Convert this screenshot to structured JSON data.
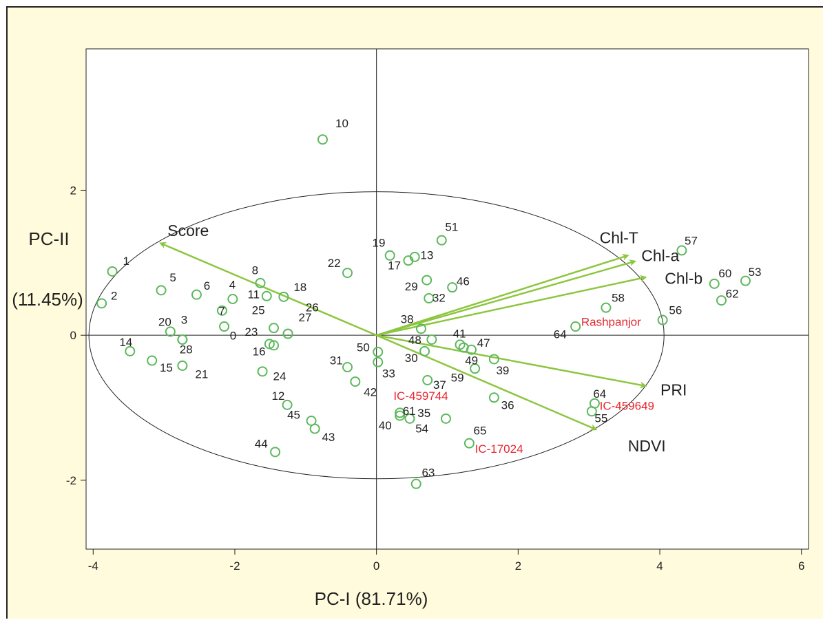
{
  "chart_data": {
    "type": "scatter",
    "subtype": "pca-biplot",
    "xlabel": "PC-I (81.71%)",
    "ylabel": "PC-II",
    "ylabel_sub": "(11.45%)",
    "xlim": [
      -4.1,
      6.1
    ],
    "ylim": [
      -2.95,
      3.95
    ],
    "xticks": [
      -4,
      -2,
      0,
      2,
      4,
      6
    ],
    "yticks": [
      -2,
      0,
      2
    ],
    "ellipse": {
      "center": [
        0,
        0
      ],
      "rx": 4.06,
      "ry": 1.98
    },
    "colors": {
      "points": "#5cb85c",
      "vectors": "#8cc63f",
      "highlight": "#e8262e",
      "background": "#fffbdc"
    },
    "points": [
      {
        "label": "1",
        "x": -3.73,
        "y": 0.88
      },
      {
        "label": "2",
        "x": -3.88,
        "y": 0.44
      },
      {
        "label": "3",
        "x": -2.74,
        "y": -0.06
      },
      {
        "label": "4",
        "x": -2.03,
        "y": 0.5
      },
      {
        "label": "5",
        "x": -3.04,
        "y": 0.62
      },
      {
        "label": "6",
        "x": -2.54,
        "y": 0.56
      },
      {
        "label": "7",
        "x": -2.18,
        "y": 0.34
      },
      {
        "label": "0",
        "x": -2.15,
        "y": 0.12
      },
      {
        "label": "8",
        "x": -1.64,
        "y": 0.72
      },
      {
        "label": "10",
        "x": -0.76,
        "y": 2.7
      },
      {
        "label": "11",
        "x": -1.55,
        "y": 0.54
      },
      {
        "label": "12",
        "x": -1.26,
        "y": -0.96
      },
      {
        "label": "13",
        "x": 0.54,
        "y": 1.08
      },
      {
        "label": "14",
        "x": -3.48,
        "y": -0.22
      },
      {
        "label": "15",
        "x": -3.17,
        "y": -0.35
      },
      {
        "label": "16",
        "x": -1.51,
        "y": -0.12
      },
      {
        "label": "17",
        "x": 0.45,
        "y": 1.03
      },
      {
        "label": "18",
        "x": -1.31,
        "y": 0.53
      },
      {
        "label": "19",
        "x": 0.19,
        "y": 1.1
      },
      {
        "label": "20",
        "x": -2.91,
        "y": 0.05
      },
      {
        "label": "21",
        "x": -2.74,
        "y": -0.42
      },
      {
        "label": "22",
        "x": -0.41,
        "y": 0.86
      },
      {
        "label": "23",
        "x": -1.45,
        "y": -0.14
      },
      {
        "label": "24",
        "x": -1.61,
        "y": -0.5
      },
      {
        "label": "25",
        "x": -1.45,
        "y": 0.1
      },
      {
        "label": "26",
        "x": -1.25,
        "y": 0.02
      },
      {
        "label": "27",
        "x": -1.25,
        "y": 0.02
      },
      {
        "label": "28",
        "x": -2.74,
        "y": -0.06
      },
      {
        "label": "29",
        "x": 0.71,
        "y": 0.76
      },
      {
        "label": "30",
        "x": 0.68,
        "y": -0.22
      },
      {
        "label": "31",
        "x": -0.41,
        "y": -0.44
      },
      {
        "label": "32",
        "x": 0.74,
        "y": 0.51
      },
      {
        "label": "33",
        "x": 0.02,
        "y": -0.37
      },
      {
        "label": "35",
        "x": 0.98,
        "y": -1.15
      },
      {
        "label": "36",
        "x": 1.66,
        "y": -0.86
      },
      {
        "label": "37",
        "x": 0.72,
        "y": -0.62
      },
      {
        "label": "38",
        "x": 0.63,
        "y": 0.09
      },
      {
        "label": "39",
        "x": 1.66,
        "y": -0.33
      },
      {
        "label": "40",
        "x": 0.33,
        "y": -1.11
      },
      {
        "label": "41",
        "x": 1.18,
        "y": -0.13
      },
      {
        "label": "42",
        "x": -0.3,
        "y": -0.64
      },
      {
        "label": "43",
        "x": -0.87,
        "y": -1.29
      },
      {
        "label": "44",
        "x": -1.43,
        "y": -1.61
      },
      {
        "label": "45",
        "x": -0.92,
        "y": -1.18
      },
      {
        "label": "46",
        "x": 1.07,
        "y": 0.66
      },
      {
        "label": "47",
        "x": 1.34,
        "y": -0.2
      },
      {
        "label": "48",
        "x": 0.78,
        "y": -0.06
      },
      {
        "label": "49",
        "x": 1.23,
        "y": -0.17
      },
      {
        "label": "50",
        "x": 0.02,
        "y": -0.23
      },
      {
        "label": "51",
        "x": 0.92,
        "y": 1.31
      },
      {
        "label": "53",
        "x": 5.21,
        "y": 0.75
      },
      {
        "label": "54",
        "x": 0.47,
        "y": -1.15
      },
      {
        "label": "55",
        "x": 3.04,
        "y": -1.05
      },
      {
        "label": "56",
        "x": 4.04,
        "y": 0.21
      },
      {
        "label": "57",
        "x": 4.31,
        "y": 1.17
      },
      {
        "label": "58",
        "x": 3.24,
        "y": 0.38
      },
      {
        "label": "59",
        "x": 1.39,
        "y": -0.46
      },
      {
        "label": "60",
        "x": 4.77,
        "y": 0.71
      },
      {
        "label": "61",
        "x": 0.33,
        "y": -1.07
      },
      {
        "label": "62",
        "x": 4.87,
        "y": 0.48
      },
      {
        "label": "63",
        "x": 0.56,
        "y": -2.05
      },
      {
        "label": "64",
        "x": 3.08,
        "y": -0.94
      },
      {
        "label": "65",
        "x": 1.31,
        "y": -1.49
      },
      {
        "label": "64",
        "x": 2.81,
        "y": 0.12
      }
    ],
    "point_labels_drawn": [
      {
        "text": "1",
        "x": -3.58,
        "y": 0.97
      },
      {
        "text": "2",
        "x": -3.75,
        "y": 0.49
      },
      {
        "text": "3",
        "x": -2.76,
        "y": 0.16
      },
      {
        "text": "4",
        "x": -2.08,
        "y": 0.64
      },
      {
        "text": "5",
        "x": -2.92,
        "y": 0.74
      },
      {
        "text": "6",
        "x": -2.44,
        "y": 0.63
      },
      {
        "text": "7",
        "x": -2.23,
        "y": 0.28
      },
      {
        "text": "0",
        "x": -2.07,
        "y": -0.06
      },
      {
        "text": "8",
        "x": -1.76,
        "y": 0.84
      },
      {
        "text": "10",
        "x": -0.58,
        "y": 2.87
      },
      {
        "text": "11",
        "x": -1.82,
        "y": 0.51
      },
      {
        "text": "12",
        "x": -1.48,
        "y": -0.89
      },
      {
        "text": "13",
        "x": 0.62,
        "y": 1.05
      },
      {
        "text": "14",
        "x": -3.63,
        "y": -0.15
      },
      {
        "text": "15",
        "x": -3.06,
        "y": -0.5
      },
      {
        "text": "16",
        "x": -1.75,
        "y": -0.28
      },
      {
        "text": "17",
        "x": 0.16,
        "y": 0.91
      },
      {
        "text": "18",
        "x": -1.17,
        "y": 0.61
      },
      {
        "text": "19",
        "x": -0.06,
        "y": 1.22
      },
      {
        "text": "20",
        "x": -3.08,
        "y": 0.13
      },
      {
        "text": "21",
        "x": -2.56,
        "y": -0.59
      },
      {
        "text": "22",
        "x": -0.69,
        "y": 0.94
      },
      {
        "text": "23",
        "x": -1.86,
        "y": -0.01
      },
      {
        "text": "24",
        "x": -1.46,
        "y": -0.62
      },
      {
        "text": "25",
        "x": -1.76,
        "y": 0.29
      },
      {
        "text": "26",
        "x": -1.0,
        "y": 0.33
      },
      {
        "text": "27",
        "x": -1.1,
        "y": 0.19
      },
      {
        "text": "28",
        "x": -2.78,
        "y": -0.25
      },
      {
        "text": "29",
        "x": 0.4,
        "y": 0.62
      },
      {
        "text": "30",
        "x": 0.4,
        "y": -0.37
      },
      {
        "text": "31",
        "x": -0.66,
        "y": -0.4
      },
      {
        "text": "32",
        "x": 0.79,
        "y": 0.46
      },
      {
        "text": "33",
        "x": 0.08,
        "y": -0.58
      },
      {
        "text": "35",
        "x": 0.58,
        "y": -1.13
      },
      {
        "text": "36",
        "x": 1.76,
        "y": -1.02
      },
      {
        "text": "37",
        "x": 0.8,
        "y": -0.74
      },
      {
        "text": "38",
        "x": 0.34,
        "y": 0.17
      },
      {
        "text": "39",
        "x": 1.69,
        "y": -0.54
      },
      {
        "text": "40",
        "x": 0.03,
        "y": -1.3
      },
      {
        "text": "41",
        "x": 1.08,
        "y": -0.03
      },
      {
        "text": "42",
        "x": -0.18,
        "y": -0.84
      },
      {
        "text": "43",
        "x": -0.77,
        "y": -1.46
      },
      {
        "text": "44",
        "x": -1.72,
        "y": -1.55
      },
      {
        "text": "45",
        "x": -1.26,
        "y": -1.15
      },
      {
        "text": "46",
        "x": 1.13,
        "y": 0.69
      },
      {
        "text": "47",
        "x": 1.42,
        "y": -0.16
      },
      {
        "text": "48",
        "x": 0.45,
        "y": -0.12
      },
      {
        "text": "49",
        "x": 1.25,
        "y": -0.4
      },
      {
        "text": "50",
        "x": -0.28,
        "y": -0.22
      },
      {
        "text": "51",
        "x": 0.97,
        "y": 1.44
      },
      {
        "text": "53",
        "x": 5.25,
        "y": 0.82
      },
      {
        "text": "54",
        "x": 0.55,
        "y": -1.34
      },
      {
        "text": "55",
        "x": 3.08,
        "y": -1.2
      },
      {
        "text": "56",
        "x": 4.13,
        "y": 0.29
      },
      {
        "text": "57",
        "x": 4.35,
        "y": 1.25
      },
      {
        "text": "58",
        "x": 3.32,
        "y": 0.46
      },
      {
        "text": "59",
        "x": 1.05,
        "y": -0.64
      },
      {
        "text": "60",
        "x": 4.83,
        "y": 0.8
      },
      {
        "text": "61",
        "x": 0.37,
        "y": -1.1
      },
      {
        "text": "62",
        "x": 4.93,
        "y": 0.52
      },
      {
        "text": "63",
        "x": 0.64,
        "y": -1.95
      },
      {
        "text": "64",
        "x": 3.06,
        "y": -0.86
      },
      {
        "text": "65",
        "x": 1.37,
        "y": -1.37
      },
      {
        "text": "64",
        "x": 2.5,
        "y": -0.04
      }
    ],
    "highlighted_labels": [
      {
        "text": "Rashpanjor",
        "x": 2.89,
        "y": 0.13
      },
      {
        "text": "IC-459744",
        "x": 0.24,
        "y": -0.89
      },
      {
        "text": "IC-459649",
        "x": 3.15,
        "y": -1.03
      },
      {
        "text": "IC-17024",
        "x": 1.39,
        "y": -1.62
      }
    ],
    "vectors": [
      {
        "name": "Score",
        "x": -3.05,
        "y": 1.27,
        "label_x": -2.95,
        "label_y": 1.37
      },
      {
        "name": "Chl-T",
        "x": 3.55,
        "y": 1.1,
        "label_x": 3.15,
        "label_y": 1.27
      },
      {
        "name": "Chl-a",
        "x": 3.65,
        "y": 1.02,
        "label_x": 3.74,
        "label_y": 1.02
      },
      {
        "name": "Chl-b",
        "x": 3.8,
        "y": 0.8,
        "label_x": 4.07,
        "label_y": 0.71
      },
      {
        "name": "PRI",
        "x": 3.8,
        "y": -0.7,
        "label_x": 4.01,
        "label_y": -0.83
      },
      {
        "name": "NDVI",
        "x": 3.1,
        "y": -1.3,
        "label_x": 3.55,
        "label_y": -1.6
      }
    ]
  }
}
